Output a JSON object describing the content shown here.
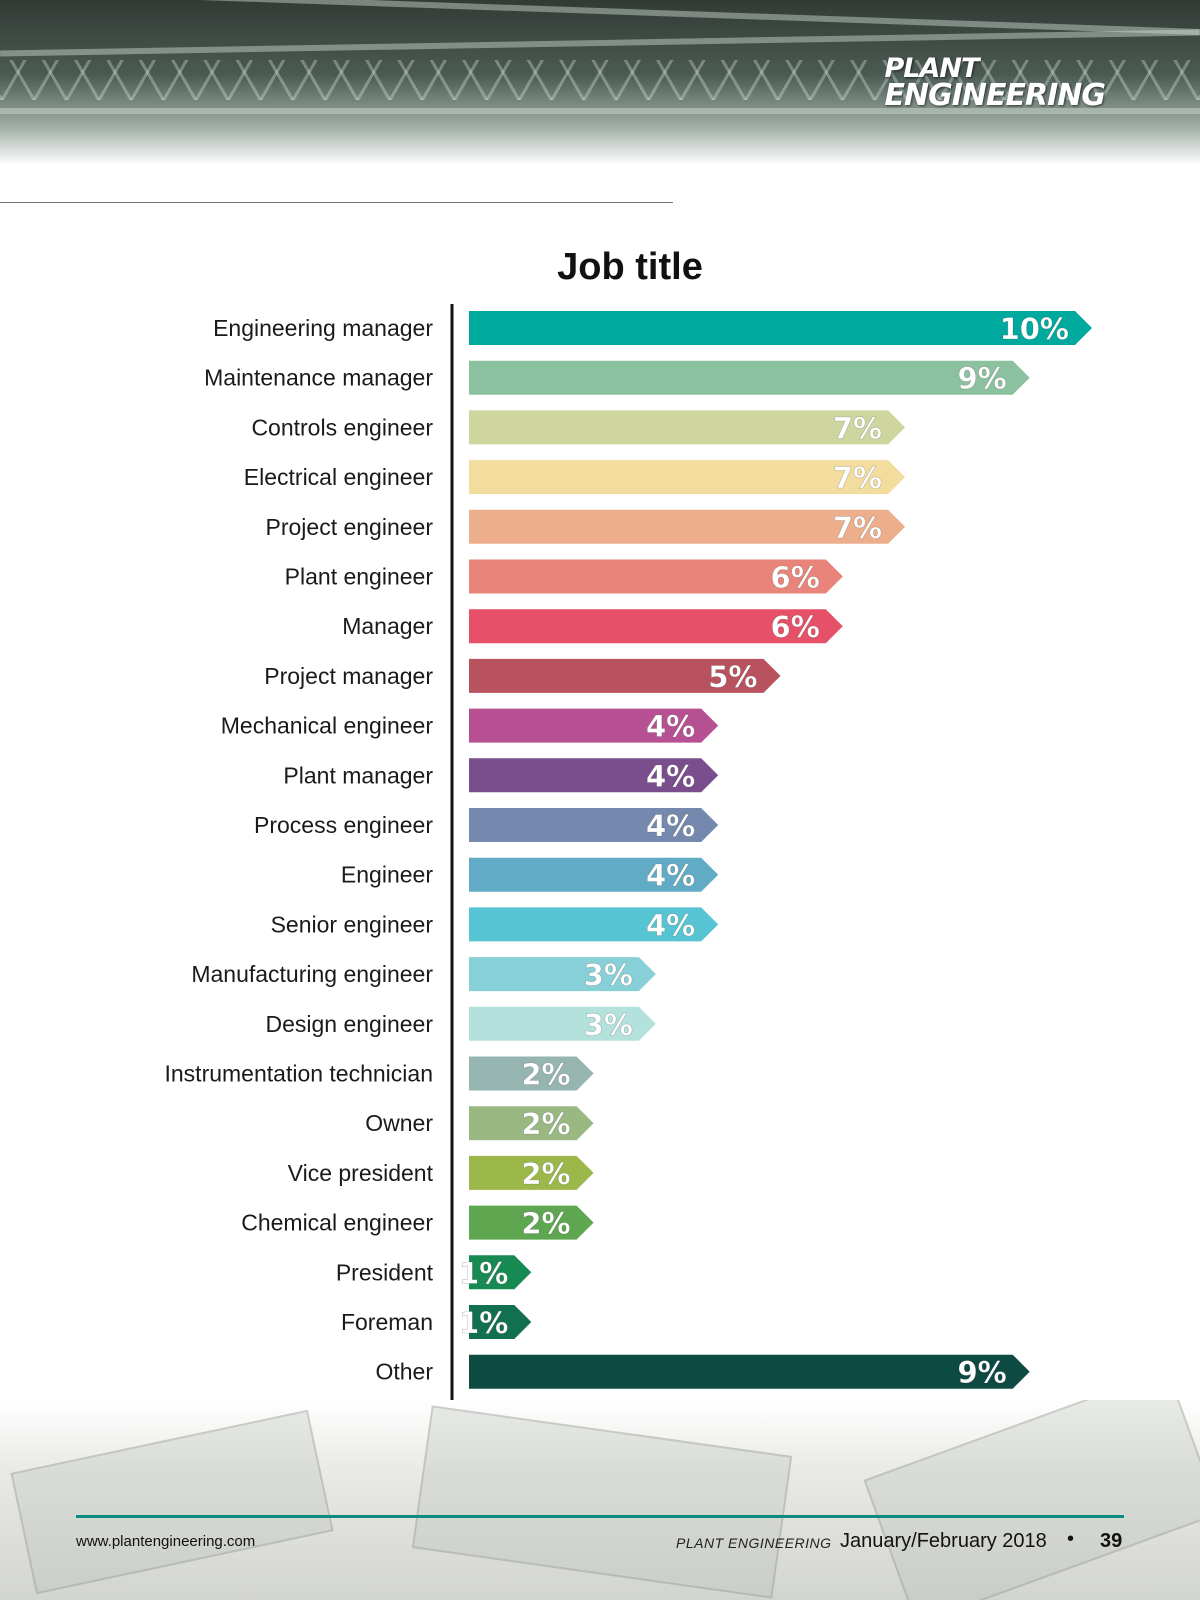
{
  "header": {
    "logo_line1": "PLANT",
    "logo_line2": "ENGINEERING"
  },
  "chart_data": {
    "type": "bar",
    "orientation": "horizontal",
    "title": "Job title",
    "categories": [
      "Engineering manager",
      "Maintenance manager",
      "Controls engineer",
      "Electrical engineer",
      "Project engineer",
      "Plant engineer",
      "Manager",
      "Project manager",
      "Mechanical engineer",
      "Plant manager",
      "Process engineer",
      "Engineer",
      "Senior engineer",
      "Manufacturing engineer",
      "Design engineer",
      "Instrumentation technician",
      "Owner",
      "Vice president",
      "Chemical engineer",
      "President",
      "Foreman",
      "Other"
    ],
    "values": [
      10,
      9,
      7,
      7,
      7,
      6,
      6,
      5,
      4,
      4,
      4,
      4,
      4,
      3,
      3,
      2,
      2,
      2,
      2,
      1,
      1,
      9
    ],
    "value_labels": [
      "10%",
      "9%",
      "7%",
      "7%",
      "7%",
      "6%",
      "6%",
      "5%",
      "4%",
      "4%",
      "4%",
      "4%",
      "4%",
      "3%",
      "3%",
      "2%",
      "2%",
      "2%",
      "2%",
      "1%",
      "1%",
      "9%"
    ],
    "colors": [
      "#00a99d",
      "#8cc1a0",
      "#cfd59f",
      "#f3dd9e",
      "#edaf8b",
      "#e9847a",
      "#e65068",
      "#b9525f",
      "#b65092",
      "#7a4e8c",
      "#7589ae",
      "#62abc6",
      "#56c4d3",
      "#88d0d7",
      "#b3e1dc",
      "#96b4b0",
      "#9ab982",
      "#9cb84a",
      "#5fa650",
      "#178a52",
      "#126f50",
      "#0d4a42"
    ],
    "xlim": [
      0,
      10
    ],
    "grid": false,
    "legend": "none"
  },
  "footer": {
    "url": "www.plantengineering.com",
    "magazine": "PLANT ENGINEERING",
    "issue": "January/February 2018",
    "bullet": "•",
    "page": "39"
  }
}
